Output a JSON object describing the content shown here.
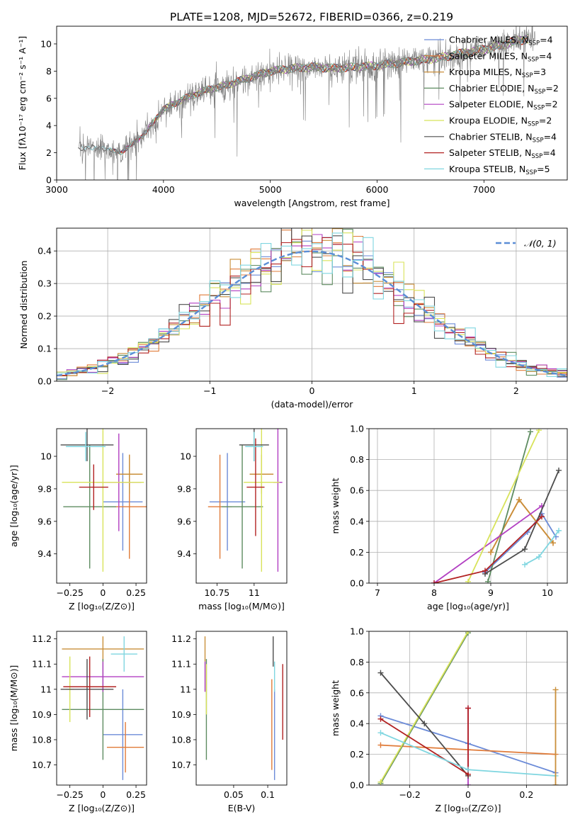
{
  "figure_title": "PLATE=1208, MJD=52672, FIBERID=0366, z=0.219",
  "models": [
    {
      "name": "Chabrier MILES",
      "nssp": "4",
      "color": "#6b8bd8"
    },
    {
      "name": "Salpeter MILES",
      "nssp": "4",
      "color": "#e07b39"
    },
    {
      "name": "Kroupa MILES",
      "nssp": "3",
      "color": "#c98f3a"
    },
    {
      "name": "Chabrier ELODIE",
      "nssp": "2",
      "color": "#5e8c61"
    },
    {
      "name": "Salpeter ELODIE",
      "nssp": "2",
      "color": "#b23fc2"
    },
    {
      "name": "Kroupa ELODIE",
      "nssp": "2",
      "color": "#d8e35a"
    },
    {
      "name": "Chabrier STELIB",
      "nssp": "4",
      "color": "#4d4d4d"
    },
    {
      "name": "Salpeter STELIB",
      "nssp": "4",
      "color": "#b22222"
    },
    {
      "name": "Kroupa STELIB",
      "nssp": "5",
      "color": "#7fd6e0"
    }
  ],
  "chart_data": [
    {
      "id": "spectrum",
      "type": "line",
      "xlabel": "wavelength [Angstrom, rest frame]",
      "ylabel": "Flux [fλ10⁻¹⁷ erg cm⁻² s⁻¹ A⁻¹]",
      "xlim": [
        3000,
        7780
      ],
      "ylim": [
        0,
        11.3
      ],
      "xticks": [
        3000,
        4000,
        5000,
        6000,
        7000
      ],
      "yticks": [
        0,
        2,
        4,
        6,
        8,
        10
      ],
      "legend_position": "top-right",
      "observed_color": "#808080",
      "approx_continuum": [
        [
          3200,
          2.3
        ],
        [
          3400,
          2.4
        ],
        [
          3600,
          2.0
        ],
        [
          3800,
          3.2
        ],
        [
          4000,
          5.2
        ],
        [
          4200,
          6.0
        ],
        [
          4400,
          6.6
        ],
        [
          4600,
          7.0
        ],
        [
          4800,
          7.5
        ],
        [
          5000,
          8.0
        ],
        [
          5200,
          8.2
        ],
        [
          5400,
          8.3
        ],
        [
          5600,
          8.2
        ],
        [
          5800,
          8.3
        ],
        [
          6000,
          8.4
        ],
        [
          6200,
          8.6
        ],
        [
          6400,
          8.8
        ],
        [
          6600,
          9.0
        ],
        [
          6800,
          9.3
        ],
        [
          7000,
          9.6
        ],
        [
          7200,
          10.0
        ],
        [
          7400,
          10.4
        ]
      ],
      "grid": false
    },
    {
      "id": "residuals",
      "type": "line",
      "xlabel": "(data-model)/error",
      "ylabel": "Normed distribution",
      "xlim": [
        -2.5,
        2.5
      ],
      "ylim": [
        0,
        0.47
      ],
      "xticks": [
        -2,
        -1,
        0,
        1,
        2
      ],
      "yticks": [
        0.0,
        0.1,
        0.2,
        0.3,
        0.4
      ],
      "legend": "𝒩(0, 1)",
      "curve": "gaussian mean 0, sigma 1",
      "bin_width": 0.1,
      "grid": true
    },
    {
      "id": "age_vs_Z",
      "type": "scatter",
      "xlabel": "Z [log₁₀(Z/Z⊙)]",
      "ylabel": "age  [log₁₀(age/yr)]",
      "xlim": [
        -0.35,
        0.33
      ],
      "ylim": [
        9.22,
        10.17
      ],
      "xticks": [
        -0.25,
        0.0,
        0.25
      ],
      "yticks": [
        9.4,
        9.6,
        9.8,
        10.0
      ],
      "points": [
        {
          "x": 0.15,
          "y": 9.72,
          "xerr": 0.15,
          "yerr": 0.3
        },
        {
          "x": 0.2,
          "y": 9.69,
          "xerr": 0.2,
          "yerr": 0.32
        },
        {
          "x": 0.2,
          "y": 9.89,
          "xerr": 0.1,
          "yerr": 0.12
        },
        {
          "x": -0.1,
          "y": 9.69,
          "xerr": 0.2,
          "yerr": 0.38
        },
        {
          "x": 0.12,
          "y": 9.84,
          "xerr": 0.17,
          "yerr": 0.3
        },
        {
          "x": 0.0,
          "y": 9.84,
          "xerr": 0.31,
          "yerr": 0.55
        },
        {
          "x": -0.12,
          "y": 10.07,
          "xerr": 0.2,
          "yerr": 0.1
        },
        {
          "x": -0.07,
          "y": 9.81,
          "xerr": 0.11,
          "yerr": 0.14
        },
        {
          "x": -0.13,
          "y": 10.06,
          "xerr": 0.15,
          "yerr": 0.09
        }
      ],
      "grid": false
    },
    {
      "id": "age_vs_mass",
      "type": "scatter",
      "xlabel": "mass [log₁₀(M/M⊙)]",
      "ylabel": "",
      "xlim": [
        10.61,
        11.22
      ],
      "ylim": [
        9.22,
        10.17
      ],
      "xticks": [
        10.75,
        11.0
      ],
      "yticks": [
        9.4,
        9.6,
        9.8,
        10.0
      ],
      "points": [
        {
          "x": 10.82,
          "y": 9.72,
          "xerr": 0.12,
          "yerr": 0.3
        },
        {
          "x": 10.77,
          "y": 9.69,
          "xerr": 0.08,
          "yerr": 0.32
        },
        {
          "x": 11.05,
          "y": 9.89,
          "xerr": 0.08,
          "yerr": 0.12
        },
        {
          "x": 10.92,
          "y": 9.69,
          "xerr": 0.14,
          "yerr": 0.38
        },
        {
          "x": 11.16,
          "y": 9.84,
          "xerr": 0.03,
          "yerr": 0.55
        },
        {
          "x": 11.05,
          "y": 9.84,
          "xerr": 0.12,
          "yerr": 0.55
        },
        {
          "x": 11.0,
          "y": 10.07,
          "xerr": 0.1,
          "yerr": 0.1
        },
        {
          "x": 11.01,
          "y": 9.81,
          "xerr": 0.06,
          "yerr": 0.3
        },
        {
          "x": 11.0,
          "y": 10.06,
          "xerr": 0.06,
          "yerr": 0.09
        }
      ],
      "grid": false
    },
    {
      "id": "mass_weight_vs_age",
      "type": "line",
      "xlabel": "age  [log₁₀(age/yr)]",
      "ylabel": "mass weight",
      "xlim": [
        6.85,
        10.35
      ],
      "ylim": [
        0,
        1
      ],
      "xticks": [
        7,
        8,
        9,
        10
      ],
      "yticks": [
        0.0,
        0.2,
        0.4,
        0.6,
        0.8,
        1.0
      ],
      "series": [
        {
          "model": 0,
          "points": [
            [
              8.9,
              0.07
            ],
            [
              9.65,
              0.33
            ],
            [
              9.9,
              0.45
            ],
            [
              10.15,
              0.3
            ]
          ]
        },
        {
          "model": 1,
          "points": [
            [
              9.0,
              0.2
            ],
            [
              9.5,
              0.54
            ],
            [
              10.1,
              0.26
            ]
          ]
        },
        {
          "model": 2,
          "points": [
            [
              9.0,
              0.2
            ],
            [
              9.5,
              0.54
            ],
            [
              10.1,
              0.26
            ]
          ]
        },
        {
          "model": 3,
          "points": [
            [
              8.95,
              0.01
            ],
            [
              9.7,
              0.98
            ]
          ]
        },
        {
          "model": 4,
          "points": [
            [
              8.0,
              0.0
            ],
            [
              9.9,
              0.5
            ]
          ]
        },
        {
          "model": 5,
          "points": [
            [
              8.6,
              0.01
            ],
            [
              9.85,
              0.99
            ]
          ]
        },
        {
          "model": 6,
          "points": [
            [
              8.9,
              0.06
            ],
            [
              9.6,
              0.22
            ],
            [
              10.2,
              0.73
            ]
          ]
        },
        {
          "model": 7,
          "points": [
            [
              8.0,
              0.0
            ],
            [
              8.9,
              0.08
            ],
            [
              9.9,
              0.43
            ]
          ]
        },
        {
          "model": 8,
          "points": [
            [
              9.6,
              0.12
            ],
            [
              9.85,
              0.17
            ],
            [
              10.2,
              0.34
            ]
          ]
        }
      ],
      "grid": true
    },
    {
      "id": "mass_vs_Z",
      "type": "scatter",
      "xlabel": "Z [log₁₀(Z/Z⊙)]",
      "ylabel": "mass [log₁₀(M/M⊙)]",
      "xlim": [
        -0.35,
        0.33
      ],
      "ylim": [
        10.62,
        11.23
      ],
      "xticks": [
        -0.25,
        0.0,
        0.25
      ],
      "yticks": [
        10.7,
        10.8,
        10.9,
        11.0,
        11.1,
        11.2
      ],
      "points": [
        {
          "x": 0.15,
          "y": 10.82,
          "xerr": 0.15,
          "yerr": 0.18
        },
        {
          "x": 0.17,
          "y": 10.77,
          "xerr": 0.14,
          "yerr": 0.1
        },
        {
          "x": 0.0,
          "y": 11.16,
          "xerr": 0.31,
          "yerr": 0.05
        },
        {
          "x": 0.0,
          "y": 10.92,
          "xerr": 0.31,
          "yerr": 0.2
        },
        {
          "x": 0.0,
          "y": 11.05,
          "xerr": 0.31,
          "yerr": 0.06
        },
        {
          "x": -0.25,
          "y": 11.0,
          "xerr": 0.03,
          "yerr": 0.13
        },
        {
          "x": -0.12,
          "y": 11.0,
          "xerr": 0.2,
          "yerr": 0.12
        },
        {
          "x": -0.1,
          "y": 11.01,
          "xerr": 0.2,
          "yerr": 0.12
        },
        {
          "x": 0.16,
          "y": 11.14,
          "xerr": 0.1,
          "yerr": 0.07
        }
      ],
      "grid": false
    },
    {
      "id": "mass_vs_ebv",
      "type": "scatter",
      "xlabel": "E(B-V)",
      "ylabel": "",
      "xlim": [
        -0.005,
        0.128
      ],
      "ylim": [
        10.62,
        11.23
      ],
      "xticks": [
        0.05,
        0.1
      ],
      "yticks": [
        10.7,
        10.8,
        10.9,
        11.0,
        11.1,
        11.2
      ],
      "points": [
        {
          "x": 0.11,
          "y": 10.82,
          "xerr": 0,
          "yerr": 0.18
        },
        {
          "x": 0.106,
          "y": 10.86,
          "xerr": 0,
          "yerr": 0.18
        },
        {
          "x": 0.008,
          "y": 11.16,
          "xerr": 0,
          "yerr": 0.05
        },
        {
          "x": 0.01,
          "y": 10.92,
          "xerr": 0,
          "yerr": 0.2
        },
        {
          "x": 0.008,
          "y": 11.05,
          "xerr": 0,
          "yerr": 0.06
        },
        {
          "x": 0.01,
          "y": 11.0,
          "xerr": 0,
          "yerr": 0.1
        },
        {
          "x": 0.108,
          "y": 11.15,
          "xerr": 0,
          "yerr": 0.06
        },
        {
          "x": 0.122,
          "y": 10.95,
          "xerr": 0,
          "yerr": 0.15
        },
        {
          "x": 0.11,
          "y": 11.05,
          "xerr": 0,
          "yerr": 0.06
        }
      ],
      "grid": false
    },
    {
      "id": "mass_weight_vs_Z",
      "type": "line",
      "xlabel": "Z [log₁₀(Z/Z⊙)]",
      "ylabel": "mass weight",
      "xlim": [
        -0.34,
        0.34
      ],
      "ylim": [
        0,
        1
      ],
      "xticks": [
        -0.2,
        0.0,
        0.2
      ],
      "yticks": [
        0.0,
        0.2,
        0.4,
        0.6,
        0.8,
        1.0
      ],
      "series": [
        {
          "model": 0,
          "points": [
            [
              -0.3,
              0.45
            ],
            [
              0.0,
              0.27
            ],
            [
              0.3,
              0.08
            ]
          ]
        },
        {
          "model": 1,
          "points": [
            [
              -0.3,
              0.26
            ],
            [
              0.0,
              0.23
            ],
            [
              0.3,
              0.2
            ]
          ]
        },
        {
          "model": 3,
          "points": [
            [
              -0.3,
              0.01
            ],
            [
              0.0,
              0.99
            ]
          ]
        },
        {
          "model": 4,
          "points": [
            [
              0.0,
              0.0
            ],
            [
              0.0,
              0.5
            ]
          ]
        },
        {
          "model": 5,
          "points": [
            [
              -0.3,
              0.02
            ],
            [
              0.0,
              1.0
            ]
          ]
        },
        {
          "model": 6,
          "points": [
            [
              -0.3,
              0.73
            ],
            [
              -0.15,
              0.4
            ],
            [
              0.0,
              0.06
            ]
          ]
        },
        {
          "model": 7,
          "points": [
            [
              -0.3,
              0.43
            ],
            [
              0.0,
              0.07
            ],
            [
              0.0,
              0.5
            ]
          ]
        },
        {
          "model": 8,
          "points": [
            [
              -0.3,
              0.34
            ],
            [
              0.0,
              0.1
            ],
            [
              0.3,
              0.06
            ]
          ]
        },
        {
          "model": 2,
          "points": [
            [
              0.3,
              0.0
            ],
            [
              0.3,
              0.62
            ]
          ]
        }
      ],
      "grid": true
    }
  ]
}
